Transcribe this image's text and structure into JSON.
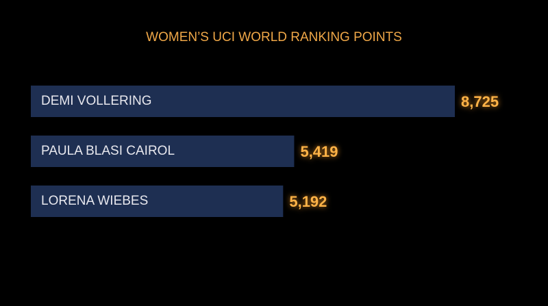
{
  "chart_data": {
    "type": "bar",
    "orientation": "horizontal",
    "title": "WOMEN’S UCI WORLD RANKING POINTS",
    "categories": [
      "DEMI VOLLERING",
      "PAULA BLASI CAIROL",
      "LORENA WIEBES"
    ],
    "values": [
      8725,
      5419,
      5192
    ],
    "value_labels": [
      "8,725",
      "5,419",
      "5,192"
    ],
    "color": "#1e2f52"
  }
}
